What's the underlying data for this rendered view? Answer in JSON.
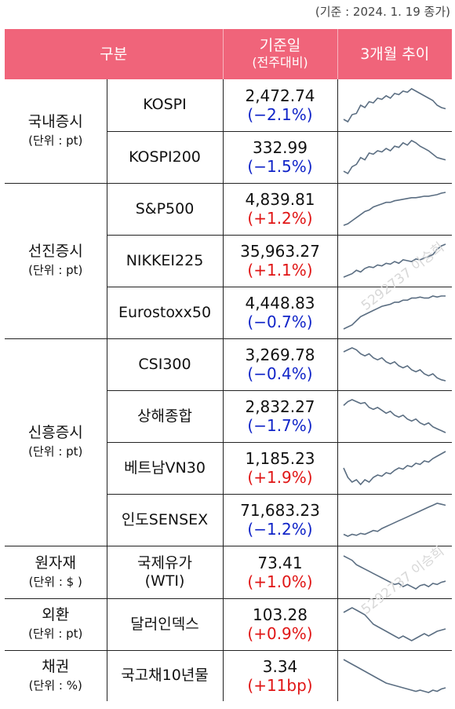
{
  "note": "(기준 : 2024. 1. 19 종가)",
  "header": {
    "col1": "구분",
    "col2_main": "기준일",
    "col2_sub": "(전주대비)",
    "col3": "3개월 추이"
  },
  "groups": [
    {
      "name": "국내증시",
      "unit": "(단위 : pt)",
      "rows": [
        {
          "name": "KOSPI",
          "value": "2,472.74",
          "change": "(−2.1%)",
          "dir": "neg",
          "trend": [
            40,
            38,
            44,
            45,
            52,
            50,
            55,
            54,
            58,
            57,
            60,
            58,
            62,
            61,
            64,
            63,
            66,
            64,
            62,
            60,
            58,
            56,
            52,
            50,
            49
          ]
        },
        {
          "name": "KOSPI200",
          "value": "332.99",
          "change": "(−1.5%)",
          "dir": "neg",
          "trend": [
            40,
            38,
            44,
            46,
            52,
            50,
            56,
            55,
            58,
            57,
            60,
            58,
            62,
            61,
            65,
            63,
            67,
            65,
            62,
            60,
            58,
            55,
            52,
            51,
            50
          ]
        }
      ]
    },
    {
      "name": "선진증시",
      "unit": "(단위 : pt)",
      "rows": [
        {
          "name": "S&P500",
          "value": "4,839.81",
          "change": "(+1.2%)",
          "dir": "pos",
          "trend": [
            30,
            32,
            36,
            40,
            44,
            48,
            50,
            54,
            56,
            58,
            60,
            60,
            62,
            63,
            64,
            65,
            66,
            66,
            67,
            68,
            68,
            69,
            70,
            72,
            73
          ]
        },
        {
          "name": "NIKKEI225",
          "value": "35,963.27",
          "change": "(+1.1%)",
          "dir": "pos",
          "trend": [
            34,
            36,
            38,
            42,
            40,
            44,
            46,
            45,
            48,
            47,
            50,
            49,
            52,
            50,
            54,
            53,
            52,
            55,
            54,
            56,
            58,
            60,
            66,
            70,
            72
          ]
        },
        {
          "name": "Eurostoxx50",
          "value": "4,448.83",
          "change": "(−0.7%)",
          "dir": "neg",
          "trend": [
            32,
            34,
            36,
            40,
            44,
            46,
            48,
            50,
            52,
            54,
            55,
            56,
            58,
            58,
            60,
            60,
            62,
            62,
            63,
            62,
            62,
            64,
            63,
            64,
            64
          ]
        }
      ]
    },
    {
      "name": "신흥증시",
      "unit": "(단위 : pt)",
      "rows": [
        {
          "name": "CSI300",
          "value": "3,269.78",
          "change": "(−0.4%)",
          "dir": "neg",
          "trend": [
            62,
            64,
            66,
            64,
            60,
            58,
            60,
            56,
            54,
            56,
            52,
            50,
            52,
            48,
            46,
            48,
            44,
            42,
            44,
            40,
            38,
            40,
            36,
            34,
            33
          ]
        },
        {
          "name": "상해종합",
          "value": "2,832.27",
          "change": "(−1.7%)",
          "dir": "neg",
          "trend": [
            60,
            64,
            66,
            64,
            62,
            63,
            58,
            56,
            58,
            55,
            52,
            54,
            50,
            48,
            50,
            46,
            44,
            46,
            42,
            40,
            42,
            38,
            36,
            34,
            32
          ]
        },
        {
          "name": "베트남VN30",
          "value": "1,185.23",
          "change": "(+1.9%)",
          "dir": "pos",
          "trend": [
            50,
            42,
            38,
            40,
            36,
            40,
            38,
            42,
            44,
            43,
            46,
            45,
            48,
            50,
            49,
            52,
            51,
            54,
            53,
            56,
            55,
            58,
            60,
            62,
            64
          ]
        },
        {
          "name": "인도SENSEX",
          "value": "71,683.23",
          "change": "(−1.2%)",
          "dir": "neg",
          "trend": [
            30,
            28,
            30,
            29,
            31,
            30,
            32,
            34,
            33,
            36,
            38,
            40,
            42,
            44,
            46,
            48,
            50,
            52,
            54,
            56,
            58,
            60,
            62,
            61,
            60
          ]
        }
      ]
    },
    {
      "name": "원자재",
      "unit": "(단위 : $ )",
      "rows": [
        {
          "name": "국제유가\n(WTI)",
          "value": "73.41",
          "change": "(+1.0%)",
          "dir": "pos",
          "trend": [
            70,
            68,
            66,
            62,
            60,
            58,
            56,
            54,
            52,
            50,
            48,
            46,
            44,
            45,
            42,
            44,
            42,
            40,
            43,
            44,
            42,
            45,
            44,
            46,
            47
          ]
        }
      ]
    },
    {
      "name": "외환",
      "unit": "(단위 : pt)",
      "rows": [
        {
          "name": "달러인덱스",
          "value": "103.28",
          "change": "(+0.9%)",
          "dir": "pos",
          "trend": [
            62,
            64,
            66,
            64,
            62,
            60,
            56,
            52,
            50,
            48,
            46,
            44,
            42,
            40,
            42,
            40,
            38,
            40,
            42,
            44,
            42,
            44,
            46,
            47,
            48
          ]
        }
      ]
    },
    {
      "name": "채권",
      "unit": "(단위 : %)",
      "rows": [
        {
          "name": "국고채10년물",
          "value": "3.34",
          "change": "(+11bp)",
          "dir": "pos",
          "trend": [
            66,
            64,
            62,
            60,
            58,
            56,
            54,
            52,
            50,
            48,
            46,
            45,
            44,
            43,
            42,
            41,
            40,
            39,
            40,
            39,
            38,
            40,
            39,
            41,
            42
          ]
        }
      ]
    }
  ],
  "colors": {
    "header_bg": "#f0647a",
    "positive": "#e01515",
    "negative": "#1024c8",
    "line": "#5b6e82"
  }
}
